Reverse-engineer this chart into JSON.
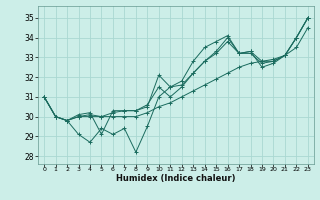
{
  "xlabel": "Humidex (Indice chaleur)",
  "background_color": "#cceee8",
  "grid_color": "#aad8d2",
  "line_color": "#1a6b5e",
  "xlim": [
    -0.5,
    23.5
  ],
  "ylim": [
    27.6,
    35.6
  ],
  "xticks": [
    0,
    1,
    2,
    3,
    4,
    5,
    6,
    7,
    8,
    9,
    10,
    11,
    12,
    13,
    14,
    15,
    16,
    17,
    18,
    19,
    20,
    21,
    22,
    23
  ],
  "yticks": [
    28,
    29,
    30,
    31,
    32,
    33,
    34,
    35
  ],
  "series": [
    [
      31.0,
      30.0,
      29.8,
      29.1,
      28.7,
      29.4,
      29.1,
      29.4,
      28.2,
      29.5,
      31.0,
      31.5,
      31.8,
      32.8,
      33.5,
      33.8,
      34.1,
      33.2,
      33.3,
      32.5,
      32.7,
      33.1,
      34.0,
      35.0
    ],
    [
      31.0,
      30.0,
      29.8,
      30.1,
      30.2,
      29.1,
      30.3,
      30.3,
      30.3,
      30.6,
      31.5,
      31.0,
      31.5,
      32.2,
      32.8,
      33.2,
      33.8,
      33.2,
      33.2,
      32.7,
      32.8,
      33.1,
      34.0,
      35.0
    ],
    [
      31.0,
      30.0,
      29.8,
      30.0,
      30.0,
      30.0,
      30.0,
      30.0,
      30.0,
      30.2,
      30.5,
      30.7,
      31.0,
      31.3,
      31.6,
      31.9,
      32.2,
      32.5,
      32.7,
      32.8,
      32.9,
      33.1,
      33.5,
      34.5
    ],
    [
      31.0,
      30.0,
      29.8,
      30.0,
      30.1,
      30.0,
      30.2,
      30.3,
      30.3,
      30.5,
      32.1,
      31.5,
      31.6,
      32.2,
      32.8,
      33.3,
      34.0,
      33.2,
      33.3,
      32.8,
      32.8,
      33.1,
      34.0,
      35.0
    ]
  ]
}
